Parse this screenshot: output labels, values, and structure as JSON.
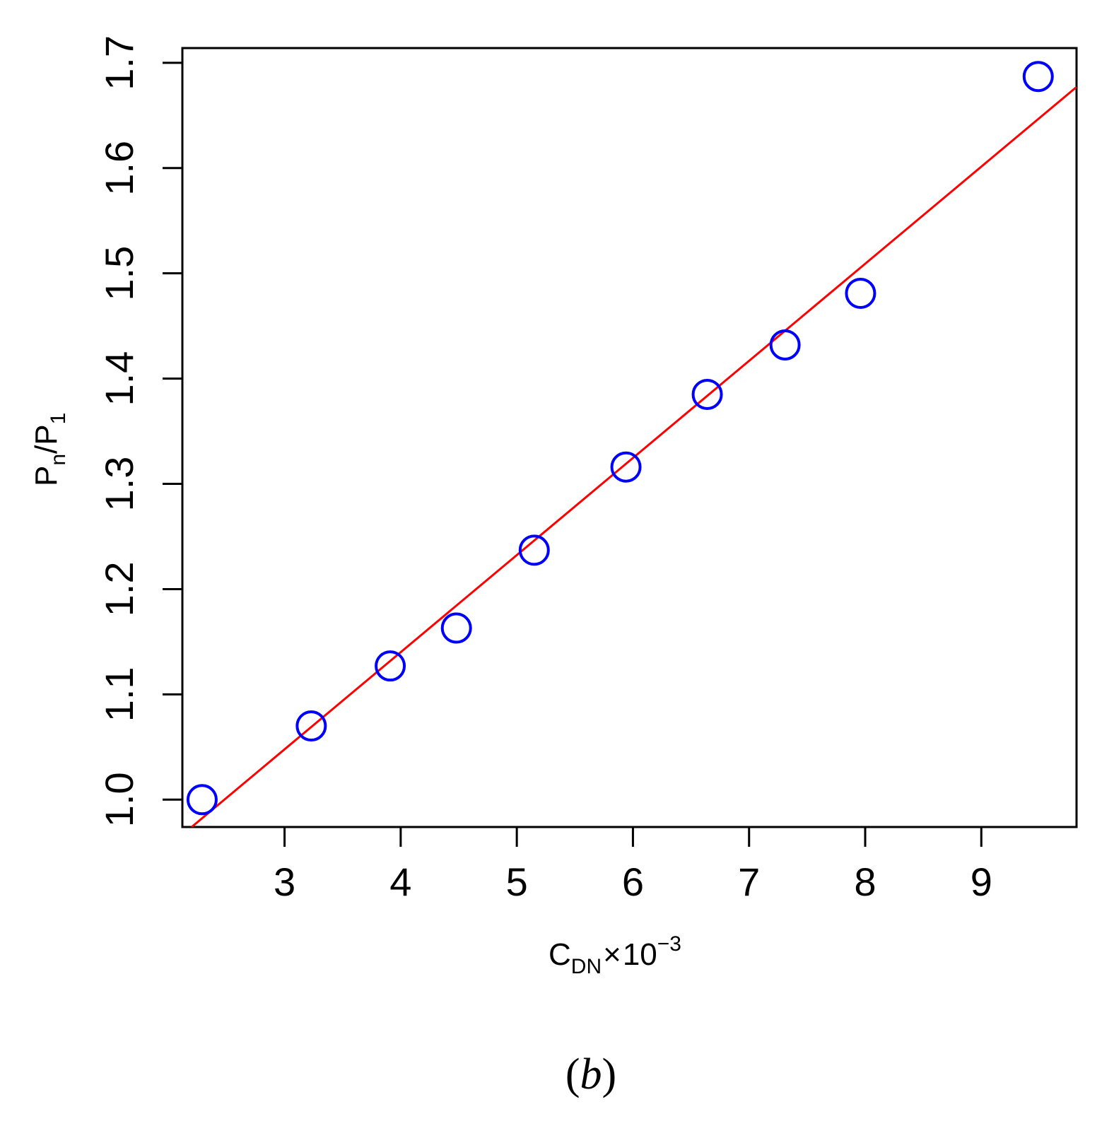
{
  "chart_data": {
    "type": "scatter",
    "xlabel": {
      "main": "C",
      "sub": "DN",
      "times": "×",
      "base": "10",
      "exp": "−3"
    },
    "ylabel": {
      "main1": "P",
      "sub1": "n",
      "slash": "/",
      "main2": "P",
      "sub2": "1"
    },
    "caption": {
      "open": "(",
      "letter": "b",
      "close": ")"
    },
    "xlim": [
      2.12,
      9.82
    ],
    "ylim": [
      0.974,
      1.714
    ],
    "xticks": [
      3,
      4,
      5,
      6,
      7,
      8,
      9
    ],
    "xtick_labels": [
      "3",
      "4",
      "5",
      "6",
      "7",
      "8",
      "9"
    ],
    "yticks": [
      1.0,
      1.1,
      1.2,
      1.3,
      1.4,
      1.5,
      1.6,
      1.7
    ],
    "ytick_labels": [
      "1.0",
      "1.1",
      "1.2",
      "1.3",
      "1.4",
      "1.5",
      "1.6",
      "1.7"
    ],
    "grid": false,
    "series": [
      {
        "kind": "points",
        "marker": "open-circle",
        "color": "#0000ff",
        "x": [
          2.29,
          3.23,
          3.91,
          4.48,
          5.15,
          5.94,
          6.64,
          7.31,
          7.96,
          9.49
        ],
        "y": [
          1.0,
          1.07,
          1.127,
          1.163,
          1.237,
          1.316,
          1.385,
          1.432,
          1.481,
          1.687
        ]
      },
      {
        "kind": "fit-line",
        "color": "#ff0000",
        "x": [
          2.2,
          9.82
        ],
        "y": [
          0.974,
          1.677
        ]
      }
    ]
  }
}
